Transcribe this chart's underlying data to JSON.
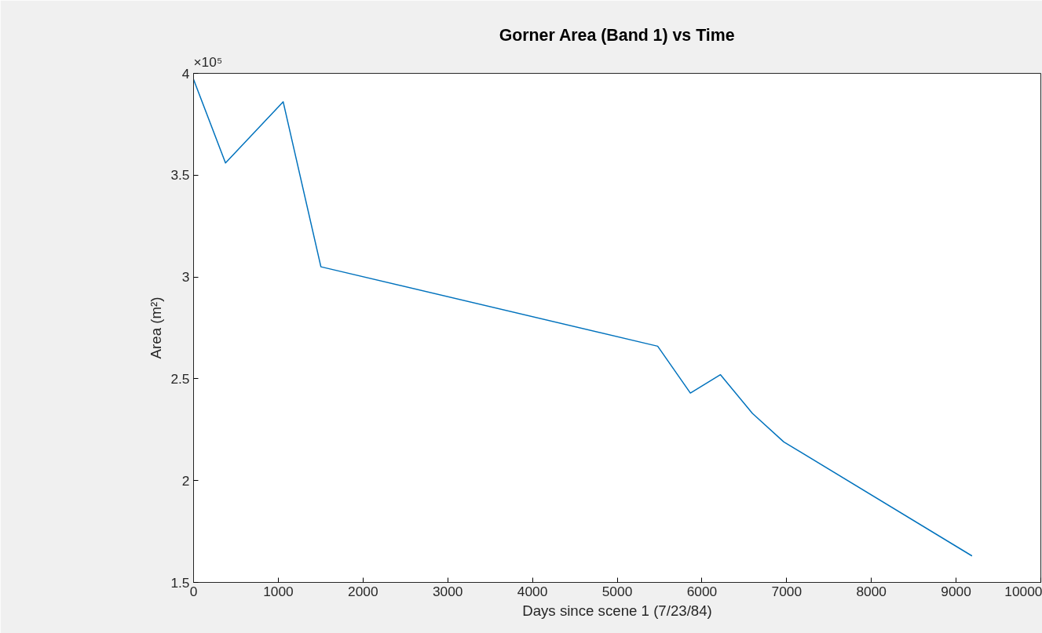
{
  "chart_data": {
    "type": "line",
    "title": "Gorner Area (Band 1) vs Time",
    "xlabel": "Days since scene 1 (7/23/84)",
    "ylabel": "Area (m²)",
    "annotations": [
      "×10⁵"
    ],
    "x": [
      0,
      377,
      1058,
      1503,
      5478,
      5864,
      6219,
      6596,
      6966,
      9188
    ],
    "series": [
      {
        "color": "#0072bd",
        "values": [
          3.97,
          3.56,
          3.86,
          3.05,
          2.66,
          2.43,
          2.52,
          2.33,
          2.19,
          1.63
        ]
      }
    ],
    "xlim": [
      0,
      10000
    ],
    "xticks": [
      0,
      1000,
      2000,
      3000,
      4000,
      5000,
      6000,
      7000,
      8000,
      9000,
      10000
    ],
    "ylim": [
      1.5,
      4
    ],
    "yticks": [
      1.5,
      2,
      2.5,
      3,
      3.5,
      4
    ],
    "grid": false,
    "marker": "none",
    "line_style": "solid"
  }
}
